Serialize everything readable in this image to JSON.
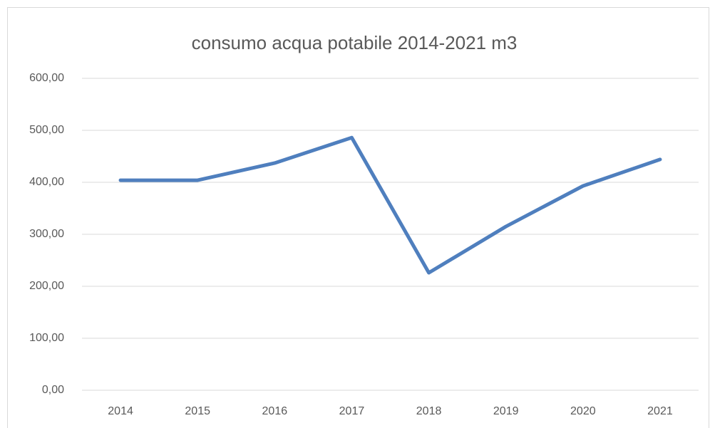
{
  "chart_data": {
    "type": "line",
    "title": "consumo acqua potabile 2014-2021  m3",
    "categories": [
      "2014",
      "2015",
      "2016",
      "2017",
      "2018",
      "2019",
      "2020",
      "2021"
    ],
    "series": [
      {
        "color": "#4f7fbe",
        "values": [
          404,
          404,
          437,
          486,
          226,
          315,
          393,
          444
        ]
      }
    ],
    "ylim": [
      0,
      600
    ],
    "yticks": [
      {
        "value": 0,
        "label": "0,00"
      },
      {
        "value": 100,
        "label": "100,00"
      },
      {
        "value": 200,
        "label": "200,00"
      },
      {
        "value": 300,
        "label": "300,00"
      },
      {
        "value": 400,
        "label": "400,00"
      },
      {
        "value": 500,
        "label": "500,00"
      },
      {
        "value": 600,
        "label": "600,00"
      }
    ],
    "grid": true
  }
}
